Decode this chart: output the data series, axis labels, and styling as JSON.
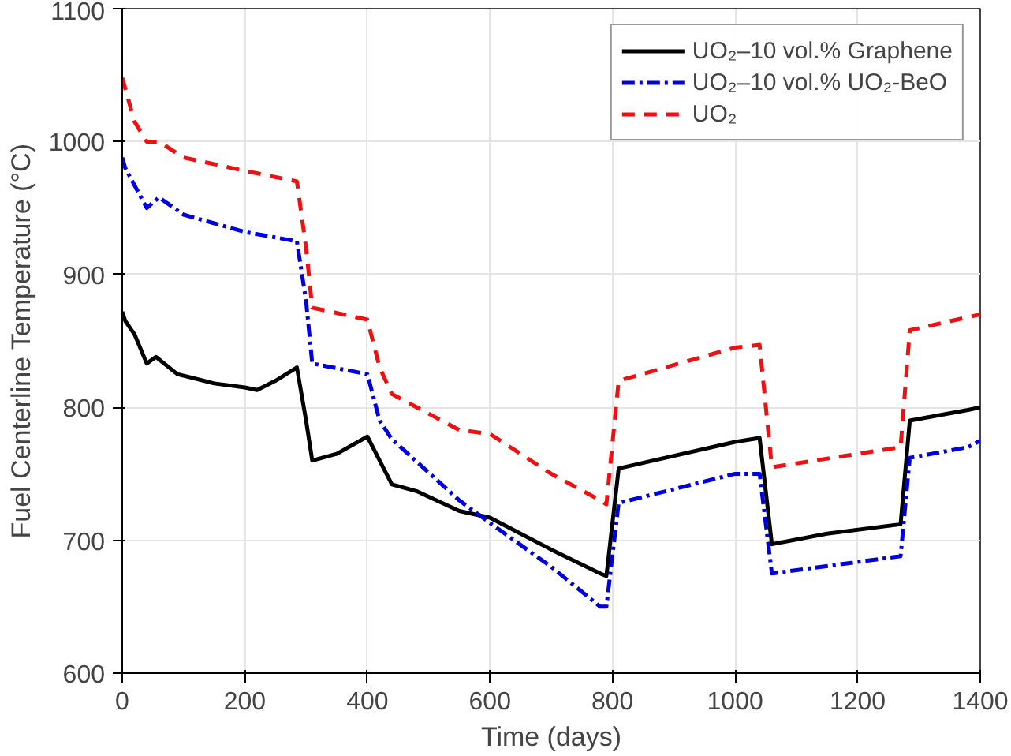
{
  "chart_data": {
    "type": "line",
    "xlabel": "Time (days)",
    "ylabel": "Fuel Centerline Temperature (°C)",
    "xlim": [
      0,
      1400
    ],
    "ylim": [
      600,
      1100
    ],
    "xticks": [
      0,
      200,
      400,
      600,
      800,
      1000,
      1200,
      1400
    ],
    "yticks": [
      600,
      700,
      800,
      900,
      1000,
      1100
    ],
    "grid": true,
    "legend": "top right",
    "series": [
      {
        "name": "UO₂–10 vol.% Graphene",
        "color": "#000000",
        "line_style": "solid",
        "x": [
          0,
          5,
          20,
          40,
          55,
          90,
          150,
          200,
          220,
          250,
          285,
          300,
          310,
          350,
          400,
          420,
          440,
          480,
          550,
          600,
          650,
          700,
          780,
          790,
          810,
          1000,
          1040,
          1060,
          1150,
          1270,
          1285,
          1380,
          1400
        ],
        "values": [
          872,
          865,
          855,
          833,
          838,
          825,
          818,
          815,
          813,
          820,
          830,
          790,
          760,
          765,
          778,
          760,
          742,
          737,
          722,
          717,
          705,
          693,
          675,
          673,
          754,
          774,
          777,
          697,
          705,
          712,
          790,
          798,
          800
        ]
      },
      {
        "name": "UO₂–10 vol.% UO₂-BeO",
        "color": "#0000dd",
        "line_style": "dashdot",
        "x": [
          0,
          5,
          40,
          60,
          100,
          200,
          285,
          300,
          310,
          400,
          420,
          440,
          550,
          600,
          700,
          780,
          790,
          810,
          1000,
          1040,
          1060,
          1270,
          1285,
          1380,
          1400
        ],
        "values": [
          988,
          980,
          950,
          958,
          945,
          932,
          925,
          880,
          833,
          825,
          790,
          776,
          730,
          713,
          680,
          650,
          650,
          728,
          750,
          750,
          675,
          688,
          762,
          770,
          775
        ]
      },
      {
        "name": "UO₂",
        "color": "#ee1111",
        "line_style": "dashed",
        "x": [
          0,
          20,
          40,
          60,
          100,
          200,
          285,
          300,
          310,
          400,
          420,
          440,
          550,
          600,
          700,
          780,
          790,
          810,
          1000,
          1040,
          1060,
          1270,
          1285,
          1400
        ],
        "values": [
          1048,
          1015,
          1000,
          1000,
          988,
          978,
          970,
          920,
          875,
          866,
          830,
          810,
          783,
          780,
          750,
          730,
          727,
          820,
          845,
          847,
          755,
          770,
          858,
          870
        ]
      }
    ]
  }
}
